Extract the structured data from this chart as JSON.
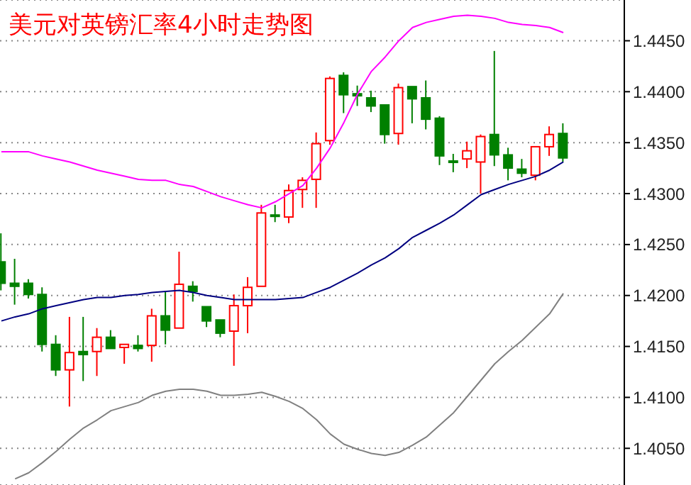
{
  "chart_data": {
    "type": "candlestick",
    "title": "美元对英镑汇率4小时走势图",
    "categories": [
      null,
      null,
      null,
      null,
      null,
      null,
      null,
      null,
      null,
      null,
      null,
      null,
      null,
      null,
      null,
      null,
      null,
      null,
      null,
      null,
      null,
      null,
      null,
      null,
      null,
      null,
      null,
      null,
      null,
      null,
      null,
      null,
      null,
      null,
      null,
      null,
      null,
      null,
      null,
      null,
      null,
      null
    ],
    "ylim": [
      1.4014,
      1.449
    ],
    "yticks": [
      {
        "value": 1.405,
        "label": "1.4050"
      },
      {
        "value": 1.41,
        "label": "1.4100"
      },
      {
        "value": 1.415,
        "label": "1.4150"
      },
      {
        "value": 1.42,
        "label": "1.4200"
      },
      {
        "value": 1.425,
        "label": "1.4250"
      },
      {
        "value": 1.43,
        "label": "1.4300"
      },
      {
        "value": 1.435,
        "label": "1.4350"
      },
      {
        "value": 1.44,
        "label": "1.4400"
      },
      {
        "value": 1.445,
        "label": "1.4450"
      }
    ],
    "grid": "y",
    "legend": false,
    "tick_labels": "y",
    "marker": "none",
    "line_style": "solid",
    "series": [
      {
        "colors": [
          "#008000",
          "#008000",
          "#008000",
          "#008000",
          "#008000",
          "#ff0000",
          "#008000",
          "#ff0000",
          "#008000",
          "#ff0000",
          "#008000",
          "#ff0000",
          "#008000",
          "#ff0000",
          "#008000",
          "#008000",
          "#008000",
          "#ff0000",
          "#ff0000",
          "#ff0000",
          "#008000",
          "#ff0000",
          "#ff0000",
          "#ff0000",
          "#ff0000",
          "#008000",
          "#008000",
          "#008000",
          "#008000",
          "#ff0000",
          "#008000",
          "#008000",
          "#008000",
          "#008000",
          "#ff0000",
          "#ff0000",
          "#008000",
          "#008000",
          "#008000",
          "#ff0000",
          "#ff0000",
          "#008000"
        ],
        "ohlc": [
          [
            1.4233,
            1.4261,
            1.4205,
            1.4212
          ],
          [
            1.4212,
            1.4236,
            1.4191,
            1.4209
          ],
          [
            1.4212,
            1.4216,
            1.4197,
            1.4201
          ],
          [
            1.4201,
            1.4208,
            1.4145,
            1.4152
          ],
          [
            1.4152,
            1.4161,
            1.4121,
            1.4127
          ],
          [
            1.4127,
            1.4179,
            1.4091,
            1.4144
          ],
          [
            1.4145,
            1.4179,
            1.4116,
            1.4142
          ],
          [
            1.4145,
            1.4168,
            1.4121,
            1.4159
          ],
          [
            1.4159,
            1.4166,
            1.4148,
            1.4148
          ],
          [
            1.4149,
            1.4152,
            1.4133,
            1.4152
          ],
          [
            1.4151,
            1.4161,
            1.4145,
            1.4148
          ],
          [
            1.4151,
            1.4187,
            1.4135,
            1.418
          ],
          [
            1.418,
            1.4204,
            1.4152,
            1.4166
          ],
          [
            1.4168,
            1.4243,
            1.4168,
            1.4211
          ],
          [
            1.4209,
            1.4214,
            1.4194,
            1.4204
          ],
          [
            1.4189,
            1.419,
            1.4169,
            1.4175
          ],
          [
            1.4176,
            1.4176,
            1.4159,
            1.4163
          ],
          [
            1.4165,
            1.4201,
            1.4131,
            1.419
          ],
          [
            1.419,
            1.4218,
            1.4163,
            1.4208
          ],
          [
            1.4209,
            1.4289,
            1.4208,
            1.4281
          ],
          [
            1.4279,
            1.4289,
            1.4272,
            1.4278
          ],
          [
            1.4277,
            1.4309,
            1.4271,
            1.4303
          ],
          [
            1.4304,
            1.4316,
            1.4286,
            1.4313
          ],
          [
            1.4314,
            1.436,
            1.4286,
            1.4349
          ],
          [
            1.4352,
            1.4415,
            1.4348,
            1.4413
          ],
          [
            1.4416,
            1.4419,
            1.4379,
            1.4397
          ],
          [
            1.4398,
            1.4406,
            1.4386,
            1.4396
          ],
          [
            1.4394,
            1.4401,
            1.438,
            1.4386
          ],
          [
            1.4387,
            1.4387,
            1.4349,
            1.4358
          ],
          [
            1.4359,
            1.4408,
            1.4348,
            1.4404
          ],
          [
            1.4405,
            1.4406,
            1.4369,
            1.4393
          ],
          [
            1.4394,
            1.4411,
            1.4363,
            1.4373
          ],
          [
            1.4374,
            1.4376,
            1.4328,
            1.4337
          ],
          [
            1.4332,
            1.4339,
            1.4321,
            1.4331
          ],
          [
            1.4334,
            1.4351,
            1.4325,
            1.4342
          ],
          [
            1.4331,
            1.4358,
            1.43,
            1.4356
          ],
          [
            1.4358,
            1.444,
            1.4327,
            1.4338
          ],
          [
            1.4338,
            1.4345,
            1.4313,
            1.4325
          ],
          [
            1.4324,
            1.4334,
            1.4316,
            1.432
          ],
          [
            1.4318,
            1.4346,
            1.4313,
            1.4346
          ],
          [
            1.4346,
            1.4366,
            1.4337,
            1.4358
          ],
          [
            1.4359,
            1.4369,
            1.4331,
            1.4335
          ]
        ]
      },
      {
        "type": "line",
        "color": "#ff00ff",
        "values": [
          1.4341,
          1.4341,
          1.4341,
          1.4337,
          1.4334,
          1.4331,
          1.4327,
          1.4323,
          1.432,
          1.4317,
          1.4314,
          1.4313,
          1.4313,
          1.4309,
          1.4307,
          1.4302,
          1.4297,
          1.4293,
          1.4289,
          1.4286,
          1.4292,
          1.43,
          1.4308,
          1.4325,
          1.4345,
          1.437,
          1.4398,
          1.442,
          1.4434,
          1.445,
          1.4463,
          1.4468,
          1.4471,
          1.4474,
          1.4475,
          1.4474,
          1.4472,
          1.4468,
          1.4466,
          1.4465,
          1.4463,
          1.4458
        ]
      },
      {
        "type": "line",
        "color": "#000080",
        "values": [
          1.4175,
          1.4179,
          1.4182,
          1.4187,
          1.419,
          1.4193,
          1.4196,
          1.4198,
          1.4198,
          1.42,
          1.4201,
          1.4203,
          1.4204,
          1.4205,
          1.4203,
          1.42,
          1.4198,
          1.4196,
          1.4196,
          1.4196,
          1.4196,
          1.4197,
          1.4198,
          1.4203,
          1.4208,
          1.4215,
          1.4222,
          1.423,
          1.4237,
          1.4246,
          1.4257,
          1.4264,
          1.4271,
          1.4279,
          1.4289,
          1.4299,
          1.4304,
          1.4309,
          1.4313,
          1.4317,
          1.4323,
          1.4331
        ]
      },
      {
        "type": "line",
        "color": "#808080",
        "values": [
          null,
          1.402,
          1.4026,
          1.4036,
          1.4047,
          1.4059,
          1.407,
          1.4078,
          1.4087,
          1.4091,
          1.4095,
          1.4102,
          1.4106,
          1.4108,
          1.4108,
          1.4106,
          1.4102,
          1.4102,
          1.4103,
          1.4105,
          1.4101,
          1.4096,
          1.4089,
          1.4078,
          1.4064,
          1.4054,
          1.4049,
          1.4045,
          1.4043,
          1.4046,
          1.4053,
          1.4061,
          1.4073,
          1.4085,
          1.4101,
          1.4117,
          1.4133,
          1.4145,
          1.4156,
          1.4169,
          1.4182,
          1.4202
        ]
      }
    ]
  }
}
